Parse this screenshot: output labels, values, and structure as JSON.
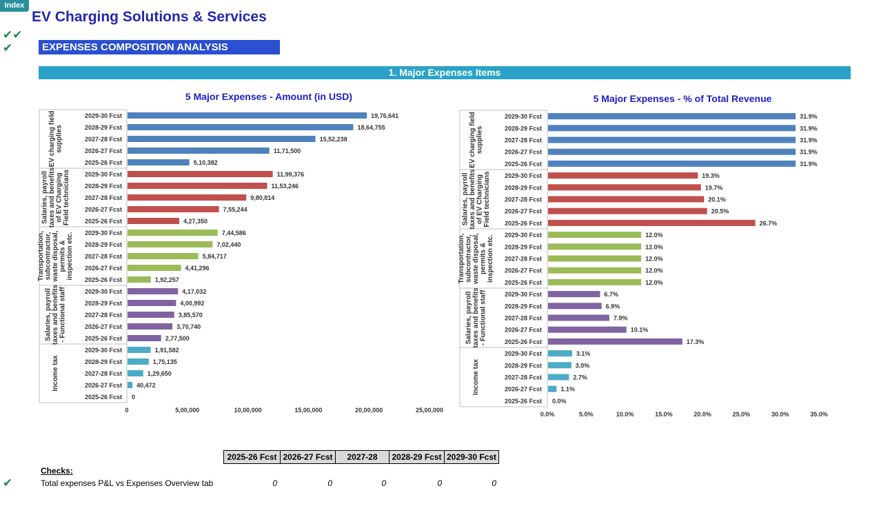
{
  "index_tab": "Index",
  "app_title": "EV Charging Solutions & Services",
  "checkmarks": {
    "row1": "✔✔",
    "row2": "✔",
    "row3": "✔"
  },
  "section_title": "EXPENSES COMPOSITION ANALYSIS",
  "major_bar": "1. Major Expenses Items",
  "colors": {
    "title_blue": "#2525b0",
    "section_blue": "#2b4fd1",
    "band_teal": "#2aa2c8",
    "check_green": "#1e8a45",
    "series": [
      "#4f81bd",
      "#c0504d",
      "#9bbb59",
      "#8064a2",
      "#4bacc6"
    ]
  },
  "chart_data": [
    {
      "type": "bar",
      "orientation": "horizontal",
      "title": "5 Major Expenses - Amount (in USD)",
      "xlim": [
        0,
        2500000
      ],
      "x_ticks": [
        "0",
        "5,00,000",
        "10,00,000",
        "15,00,000",
        "20,00,000",
        "25,00,000"
      ],
      "categories": [
        "2029-30 Fcst",
        "2028-29 Fcst",
        "2027-28 Fcst",
        "2026-27 Fcst",
        "2025-26 Fcst"
      ],
      "groups": [
        {
          "name": "EV charging field supplies",
          "values": [
            1976641,
            1864755,
            1552238,
            1171500,
            510382
          ],
          "labels": [
            "19,76,641",
            "18,64,755",
            "15,52,238",
            "11,71,500",
            "5,10,382"
          ]
        },
        {
          "name": "Salaries, payroll taxes and benefits of EV Charging Field technicians",
          "values": [
            1199376,
            1153246,
            980814,
            755244,
            427350
          ],
          "labels": [
            "11,99,376",
            "11,53,246",
            "9,80,814",
            "7,55,244",
            "4,27,350"
          ]
        },
        {
          "name": "Transportation, subcontractor, waste disposal, permits & inspection etc.",
          "values": [
            744586,
            702440,
            584717,
            441296,
            192257
          ],
          "labels": [
            "7,44,586",
            "7,02,440",
            "5,84,717",
            "4,41,296",
            "1,92,257"
          ]
        },
        {
          "name": "Salaries, payroll taxes and benefits - Functional staff",
          "values": [
            417032,
            400992,
            385570,
            370740,
            277500
          ],
          "labels": [
            "4,17,032",
            "4,00,992",
            "3,85,570",
            "3,70,740",
            "2,77,500"
          ]
        },
        {
          "name": "Income tax",
          "values": [
            191582,
            175135,
            129650,
            40472,
            0
          ],
          "labels": [
            "1,91,582",
            "1,75,135",
            "1,29,650",
            "40,472",
            "0"
          ]
        }
      ]
    },
    {
      "type": "bar",
      "orientation": "horizontal",
      "title": "5 Major Expenses - % of Total Revenue",
      "xlim": [
        0,
        35
      ],
      "x_ticks": [
        "0.0%",
        "5.0%",
        "10.0%",
        "15.0%",
        "20.0%",
        "25.0%",
        "30.0%",
        "35.0%"
      ],
      "categories": [
        "2029-30 Fcst",
        "2028-29 Fcst",
        "2027-28 Fcst",
        "2026-27 Fcst",
        "2025-26 Fcst"
      ],
      "groups": [
        {
          "name": "EV charging field supplies",
          "values": [
            31.9,
            31.9,
            31.9,
            31.9,
            31.9
          ],
          "labels": [
            "31.9%",
            "31.9%",
            "31.9%",
            "31.9%",
            "31.9%"
          ]
        },
        {
          "name": "Salaries, payroll taxes and benefits of EV Charging Field technicians",
          "values": [
            19.3,
            19.7,
            20.1,
            20.5,
            26.7
          ],
          "labels": [
            "19.3%",
            "19.7%",
            "20.1%",
            "20.5%",
            "26.7%"
          ]
        },
        {
          "name": "Transportation, subcontractor, waste disposal, permits & inspection etc.",
          "values": [
            12.0,
            12.0,
            12.0,
            12.0,
            12.0
          ],
          "labels": [
            "12.0%",
            "12.0%",
            "12.0%",
            "12.0%",
            "12.0%"
          ]
        },
        {
          "name": "Salaries, payroll taxes and benefits - Functional staff",
          "values": [
            6.7,
            6.9,
            7.9,
            10.1,
            17.3
          ],
          "labels": [
            "6.7%",
            "6.9%",
            "7.9%",
            "10.1%",
            "17.3%"
          ]
        },
        {
          "name": "Income tax",
          "values": [
            3.1,
            3.0,
            2.7,
            1.1,
            0.0
          ],
          "labels": [
            "3.1%",
            "3.0%",
            "2.7%",
            "1.1%",
            "0.0%"
          ]
        }
      ]
    }
  ],
  "group_label_lines": [
    [
      "EV charging field",
      "supplies"
    ],
    [
      "Salaries, payroll",
      "taxes and benefits",
      "of EV Charging",
      "Field technicians"
    ],
    [
      "Transportation,",
      "subcontractor,",
      "waste disposal,",
      "permits &",
      "inspection etc."
    ],
    [
      "Salaries, payroll",
      "taxes and benefits",
      "- Functional staff"
    ],
    [
      "Income tax"
    ]
  ],
  "checks": {
    "headers": [
      "2025-26 Fcst",
      "2026-27 Fcst",
      "2027-28",
      "2028-29 Fcst",
      "2029-30 Fcst"
    ],
    "label": "Checks:",
    "row_label": "Total expenses P&L vs Expenses Overview tab",
    "values": [
      "0",
      "0",
      "0",
      "0",
      "0"
    ]
  }
}
